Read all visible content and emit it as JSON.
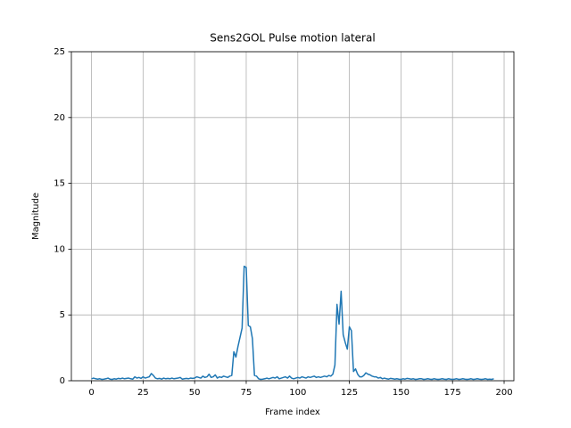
{
  "chart_data": {
    "type": "line",
    "title": "Sens2GOL Pulse motion lateral",
    "xlabel": "Frame index",
    "ylabel": "Magnitude",
    "x": [
      0,
      1,
      2,
      3,
      4,
      5,
      6,
      7,
      8,
      9,
      10,
      11,
      12,
      13,
      14,
      15,
      16,
      17,
      18,
      19,
      20,
      21,
      22,
      23,
      24,
      25,
      26,
      27,
      28,
      29,
      30,
      31,
      32,
      33,
      34,
      35,
      36,
      37,
      38,
      39,
      40,
      41,
      42,
      43,
      44,
      45,
      46,
      47,
      48,
      49,
      50,
      51,
      52,
      53,
      54,
      55,
      56,
      57,
      58,
      59,
      60,
      61,
      62,
      63,
      64,
      65,
      66,
      67,
      68,
      69,
      70,
      71,
      72,
      73,
      74,
      75,
      76,
      77,
      78,
      79,
      80,
      81,
      82,
      83,
      84,
      85,
      86,
      87,
      88,
      89,
      90,
      91,
      92,
      93,
      94,
      95,
      96,
      97,
      98,
      99,
      100,
      101,
      102,
      103,
      104,
      105,
      106,
      107,
      108,
      109,
      110,
      111,
      112,
      113,
      114,
      115,
      116,
      117,
      118,
      119,
      120,
      121,
      122,
      123,
      124,
      125,
      126,
      127,
      128,
      129,
      130,
      131,
      132,
      133,
      134,
      135,
      136,
      137,
      138,
      139,
      140,
      141,
      142,
      143,
      144,
      145,
      146,
      147,
      148,
      149,
      150,
      151,
      152,
      153,
      154,
      155,
      156,
      157,
      158,
      159,
      160,
      161,
      162,
      163,
      164,
      165,
      166,
      167,
      168,
      169,
      170,
      171,
      172,
      173,
      174,
      175,
      176,
      177,
      178,
      179,
      180,
      181,
      182,
      183,
      184,
      185,
      186,
      187,
      188,
      189,
      190,
      191,
      192,
      193,
      194,
      195
    ],
    "series": [
      {
        "name": "lateral",
        "color": "#1f77b4",
        "values": [
          0.15,
          0.2,
          0.15,
          0.12,
          0.15,
          0.1,
          0.12,
          0.15,
          0.2,
          0.12,
          0.1,
          0.15,
          0.12,
          0.18,
          0.15,
          0.2,
          0.15,
          0.18,
          0.2,
          0.15,
          0.12,
          0.3,
          0.2,
          0.25,
          0.18,
          0.3,
          0.2,
          0.25,
          0.3,
          0.55,
          0.4,
          0.2,
          0.15,
          0.18,
          0.12,
          0.2,
          0.15,
          0.18,
          0.15,
          0.2,
          0.15,
          0.18,
          0.2,
          0.25,
          0.12,
          0.15,
          0.18,
          0.15,
          0.2,
          0.18,
          0.2,
          0.3,
          0.25,
          0.2,
          0.35,
          0.25,
          0.3,
          0.5,
          0.25,
          0.3,
          0.45,
          0.2,
          0.3,
          0.25,
          0.35,
          0.3,
          0.25,
          0.35,
          0.4,
          2.2,
          1.8,
          2.6,
          3.3,
          4.0,
          8.7,
          8.6,
          4.2,
          4.1,
          3.2,
          0.4,
          0.35,
          0.15,
          0.1,
          0.12,
          0.15,
          0.2,
          0.15,
          0.2,
          0.25,
          0.2,
          0.3,
          0.15,
          0.2,
          0.25,
          0.3,
          0.2,
          0.35,
          0.2,
          0.15,
          0.2,
          0.25,
          0.2,
          0.3,
          0.25,
          0.2,
          0.3,
          0.25,
          0.3,
          0.35,
          0.25,
          0.3,
          0.25,
          0.3,
          0.35,
          0.3,
          0.4,
          0.35,
          0.5,
          1.2,
          5.8,
          4.3,
          6.8,
          3.5,
          2.9,
          2.4,
          4.1,
          3.8,
          0.7,
          0.9,
          0.5,
          0.3,
          0.3,
          0.4,
          0.6,
          0.5,
          0.45,
          0.35,
          0.3,
          0.3,
          0.2,
          0.25,
          0.15,
          0.2,
          0.15,
          0.12,
          0.18,
          0.15,
          0.12,
          0.15,
          0.12,
          0.1,
          0.15,
          0.12,
          0.18,
          0.15,
          0.12,
          0.15,
          0.1,
          0.12,
          0.15,
          0.15,
          0.1,
          0.12,
          0.15,
          0.12,
          0.1,
          0.15,
          0.12,
          0.1,
          0.12,
          0.15,
          0.12,
          0.1,
          0.15,
          0.12,
          0.1,
          0.12,
          0.15,
          0.1,
          0.12,
          0.15,
          0.12,
          0.1,
          0.12,
          0.15,
          0.1,
          0.12,
          0.15,
          0.12,
          0.1,
          0.12,
          0.15,
          0.1,
          0.12,
          0.1,
          0.15
        ]
      }
    ],
    "xlim": [
      -9.75,
      204.75
    ],
    "ylim": [
      0,
      25
    ],
    "xticks": [
      0,
      25,
      50,
      75,
      100,
      125,
      150,
      175,
      200
    ],
    "yticks": [
      0,
      5,
      10,
      15,
      20,
      25
    ],
    "grid": true
  }
}
